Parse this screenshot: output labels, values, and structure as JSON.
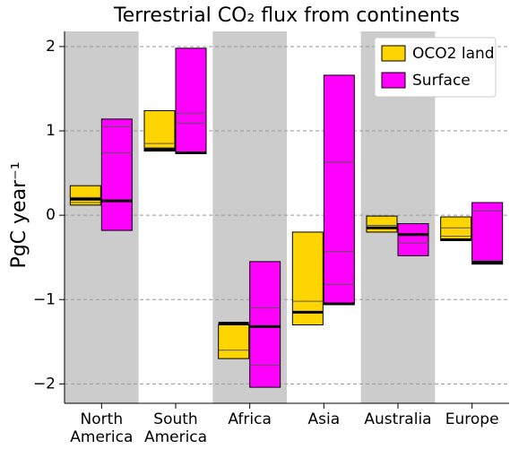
{
  "chart_data": {
    "type": "range-bar",
    "title": "Terrestrial CO₂ flux from continents",
    "y_label": "PgC year⁻¹",
    "categories": [
      "North America",
      "South America",
      "Africa",
      "Asia",
      "Australia",
      "Europe"
    ],
    "shaded": [
      true,
      false,
      true,
      false,
      true,
      false
    ],
    "shade_color": "#cccccc",
    "ylim": [
      -2.23,
      2.18
    ],
    "yticks": [
      {
        "value": -2,
        "label": "−2"
      },
      {
        "value": -1,
        "label": "−1"
      },
      0,
      1,
      2
    ],
    "grid": true,
    "legend": "upper right",
    "series": [
      {
        "name": "OCO2 land",
        "color": "#ffd500",
        "low": [
          0.12,
          0.76,
          -1.7,
          -1.3,
          -0.2,
          -0.3
        ],
        "high": [
          0.35,
          1.24,
          -1.3,
          -0.2,
          -0.01,
          -0.02
        ],
        "lines": [
          [
            0.15,
            0.21
          ],
          [
            0.85,
            0.8
          ],
          [
            -1.6
          ],
          [
            -1.02
          ],
          [
            -0.12
          ],
          [
            -0.25,
            -0.15
          ]
        ],
        "mean": [
          0.19,
          0.78,
          -1.28,
          -1.15,
          -0.15,
          -0.29
        ]
      },
      {
        "name": "Surface",
        "color": "#ff00ff",
        "low": [
          -0.18,
          0.73,
          -2.04,
          -1.06,
          -0.48,
          -0.58
        ],
        "high": [
          1.14,
          1.98,
          -0.55,
          1.66,
          -0.1,
          0.15
        ],
        "lines": [
          [
            1.05,
            0.74
          ],
          [
            1.21,
            1.09
          ],
          [
            -1.1,
            -1.78
          ],
          [
            0.63,
            -0.43,
            -0.82
          ],
          [
            -0.33
          ],
          [
            0.05,
            -0.54
          ]
        ],
        "mean": [
          0.17,
          0.74,
          -1.32,
          -1.05,
          -0.23,
          -0.56
        ]
      }
    ]
  }
}
